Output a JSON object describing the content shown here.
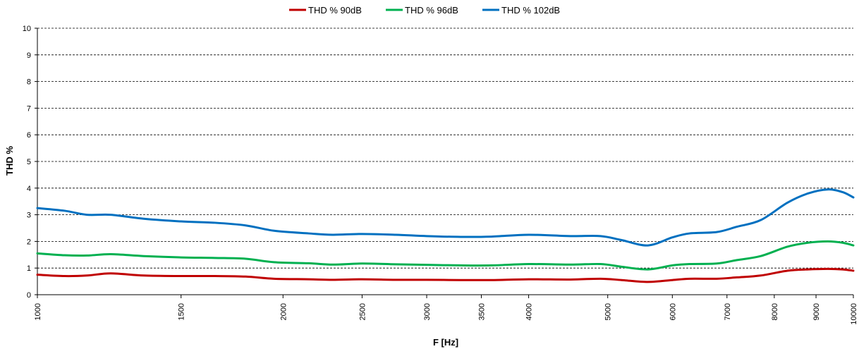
{
  "chart_data": {
    "type": "line",
    "title": "",
    "xlabel": "F [Hz]",
    "ylabel": "THD %",
    "x_scale": "log",
    "xlim": [
      1000,
      10000
    ],
    "ylim": [
      0,
      10
    ],
    "grid": "horizontal-dashed",
    "legend_position": "top",
    "x_ticks": [
      1000,
      1500,
      2000,
      2500,
      3000,
      3500,
      4000,
      5000,
      6000,
      7000,
      8000,
      9000,
      10000
    ],
    "y_ticks": [
      0,
      1,
      2,
      3,
      4,
      5,
      6,
      7,
      8,
      9,
      10
    ],
    "series": [
      {
        "name": "THD % 90dB",
        "color": "#c00000",
        "points": [
          [
            1000,
            0.75
          ],
          [
            1080,
            0.7
          ],
          [
            1150,
            0.72
          ],
          [
            1230,
            0.8
          ],
          [
            1350,
            0.72
          ],
          [
            1500,
            0.7
          ],
          [
            1650,
            0.7
          ],
          [
            1800,
            0.68
          ],
          [
            1950,
            0.6
          ],
          [
            2150,
            0.58
          ],
          [
            2300,
            0.56
          ],
          [
            2500,
            0.58
          ],
          [
            2750,
            0.56
          ],
          [
            3000,
            0.56
          ],
          [
            3300,
            0.55
          ],
          [
            3600,
            0.55
          ],
          [
            4000,
            0.58
          ],
          [
            4500,
            0.57
          ],
          [
            4900,
            0.6
          ],
          [
            5200,
            0.55
          ],
          [
            5600,
            0.48
          ],
          [
            6000,
            0.55
          ],
          [
            6300,
            0.6
          ],
          [
            6800,
            0.6
          ],
          [
            7200,
            0.65
          ],
          [
            7700,
            0.72
          ],
          [
            8300,
            0.9
          ],
          [
            8800,
            0.95
          ],
          [
            9300,
            0.97
          ],
          [
            9700,
            0.95
          ],
          [
            10000,
            0.9
          ]
        ]
      },
      {
        "name": "THD % 96dB",
        "color": "#00b050",
        "points": [
          [
            1000,
            1.55
          ],
          [
            1080,
            1.48
          ],
          [
            1150,
            1.47
          ],
          [
            1230,
            1.52
          ],
          [
            1350,
            1.45
          ],
          [
            1500,
            1.4
          ],
          [
            1650,
            1.38
          ],
          [
            1800,
            1.35
          ],
          [
            1950,
            1.22
          ],
          [
            2150,
            1.18
          ],
          [
            2300,
            1.13
          ],
          [
            2500,
            1.17
          ],
          [
            2750,
            1.14
          ],
          [
            3000,
            1.12
          ],
          [
            3300,
            1.1
          ],
          [
            3600,
            1.1
          ],
          [
            4000,
            1.15
          ],
          [
            4500,
            1.13
          ],
          [
            4900,
            1.15
          ],
          [
            5200,
            1.05
          ],
          [
            5600,
            0.95
          ],
          [
            6000,
            1.1
          ],
          [
            6300,
            1.15
          ],
          [
            6800,
            1.17
          ],
          [
            7200,
            1.3
          ],
          [
            7700,
            1.45
          ],
          [
            8300,
            1.8
          ],
          [
            8800,
            1.95
          ],
          [
            9300,
            2.0
          ],
          [
            9700,
            1.95
          ],
          [
            10000,
            1.85
          ]
        ]
      },
      {
        "name": "THD % 102dB",
        "color": "#0070c0",
        "points": [
          [
            1000,
            3.25
          ],
          [
            1080,
            3.15
          ],
          [
            1150,
            3.0
          ],
          [
            1230,
            3.0
          ],
          [
            1350,
            2.85
          ],
          [
            1500,
            2.75
          ],
          [
            1650,
            2.7
          ],
          [
            1800,
            2.6
          ],
          [
            1950,
            2.4
          ],
          [
            2150,
            2.3
          ],
          [
            2300,
            2.25
          ],
          [
            2500,
            2.28
          ],
          [
            2750,
            2.25
          ],
          [
            3000,
            2.2
          ],
          [
            3300,
            2.17
          ],
          [
            3600,
            2.18
          ],
          [
            4000,
            2.25
          ],
          [
            4500,
            2.2
          ],
          [
            4900,
            2.2
          ],
          [
            5200,
            2.05
          ],
          [
            5600,
            1.85
          ],
          [
            6000,
            2.15
          ],
          [
            6300,
            2.3
          ],
          [
            6800,
            2.35
          ],
          [
            7200,
            2.55
          ],
          [
            7700,
            2.8
          ],
          [
            8300,
            3.45
          ],
          [
            8800,
            3.8
          ],
          [
            9300,
            3.95
          ],
          [
            9700,
            3.85
          ],
          [
            10000,
            3.65
          ]
        ]
      }
    ]
  }
}
